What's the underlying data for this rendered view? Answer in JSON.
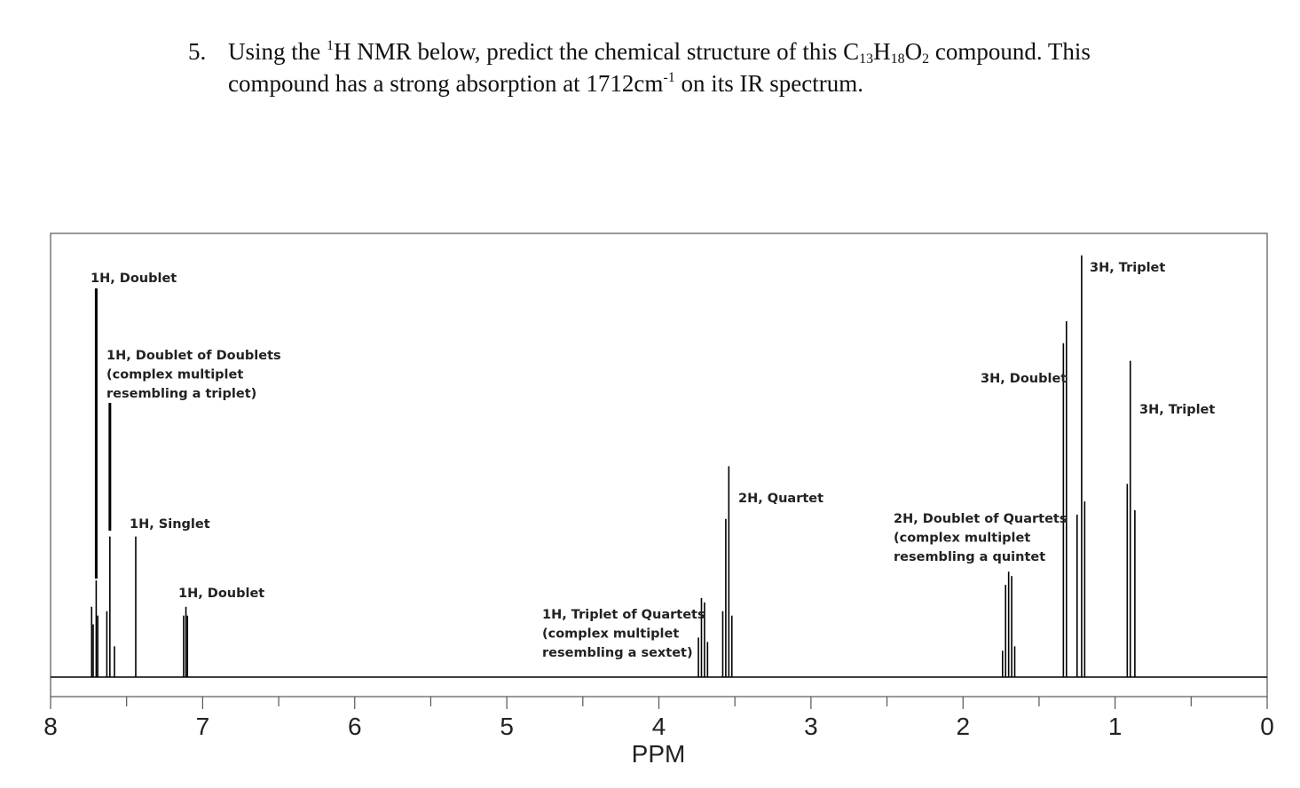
{
  "question": {
    "number": "5.",
    "line1_part1": "Using the ",
    "line1_sup": "1",
    "line1_part2": "H NMR below, predict the chemical structure of this C",
    "line1_sub1": "13",
    "line1_part3": "H",
    "line1_sub2": "18",
    "line1_part4": "O",
    "line1_sub3": "2",
    "line1_part5": " compound.  This",
    "line2_part1": "compound has a strong absorption at 1712cm",
    "line2_sup": "-1",
    "line2_part2": " on its IR spectrum."
  },
  "chart_data": {
    "type": "line",
    "title": "",
    "xlabel": "PPM",
    "ylabel": "",
    "xlim": [
      8,
      0
    ],
    "x_reversed": true,
    "xticks": [
      8,
      7,
      6,
      5,
      4,
      3,
      2,
      1,
      0
    ],
    "grid": false,
    "colors": {
      "spectrum": "#000000",
      "frame": "#555555",
      "label_line": "#000000"
    },
    "series": [
      {
        "values": [
          {
            "ppm": 7.73,
            "height": 0.16
          },
          {
            "ppm": 7.72,
            "height": 0.12
          },
          {
            "ppm": 7.7,
            "height": 0.22
          },
          {
            "ppm": 7.69,
            "height": 0.14
          },
          {
            "ppm": 7.63,
            "height": 0.15
          },
          {
            "ppm": 7.61,
            "height": 0.32
          },
          {
            "ppm": 7.58,
            "height": 0.07
          },
          {
            "ppm": 7.44,
            "height": 0.32
          },
          {
            "ppm": 7.125,
            "height": 0.14
          },
          {
            "ppm": 7.11,
            "height": 0.16
          },
          {
            "ppm": 7.1,
            "height": 0.14
          },
          {
            "ppm": 3.74,
            "height": 0.09
          },
          {
            "ppm": 3.72,
            "height": 0.18
          },
          {
            "ppm": 3.7,
            "height": 0.17
          },
          {
            "ppm": 3.68,
            "height": 0.08
          },
          {
            "ppm": 3.58,
            "height": 0.15
          },
          {
            "ppm": 3.56,
            "height": 0.36
          },
          {
            "ppm": 3.54,
            "height": 0.48
          },
          {
            "ppm": 3.52,
            "height": 0.14
          },
          {
            "ppm": 1.74,
            "height": 0.06
          },
          {
            "ppm": 1.72,
            "height": 0.21
          },
          {
            "ppm": 1.7,
            "height": 0.24
          },
          {
            "ppm": 1.68,
            "height": 0.23
          },
          {
            "ppm": 1.66,
            "height": 0.07
          },
          {
            "ppm": 1.34,
            "height": 0.76
          },
          {
            "ppm": 1.32,
            "height": 0.81
          },
          {
            "ppm": 1.25,
            "height": 0.37
          },
          {
            "ppm": 1.22,
            "height": 0.96
          },
          {
            "ppm": 1.2,
            "height": 0.4
          },
          {
            "ppm": 0.92,
            "height": 0.44
          },
          {
            "ppm": 0.9,
            "height": 0.72
          },
          {
            "ppm": 0.87,
            "height": 0.38
          }
        ]
      }
    ],
    "annotations": [
      {
        "ppm": 7.7,
        "lines": [
          "1H, Doublet"
        ],
        "leader": true
      },
      {
        "ppm": 7.61,
        "lines": [
          "1H, Doublet of Doublets",
          "(complex multiplet",
          "resembling a triplet)"
        ],
        "leader": true
      },
      {
        "ppm": 7.44,
        "lines": [
          "1H, Singlet"
        ],
        "leader": false
      },
      {
        "ppm": 7.11,
        "lines": [
          "1H, Doublet"
        ],
        "leader": false
      },
      {
        "ppm": 3.71,
        "lines": [
          "1H, Triplet of Quartets",
          "(complex multiplet",
          "resembling a sextet)"
        ],
        "leader": false
      },
      {
        "ppm": 3.55,
        "lines": [
          "2H, Quartet"
        ],
        "leader": false
      },
      {
        "ppm": 1.7,
        "lines": [
          "2H, Doublet of Quartets",
          "(complex multiplet",
          "resembling a quintet"
        ],
        "leader": false
      },
      {
        "ppm": 1.33,
        "lines": [
          "3H, Doublet"
        ],
        "leader": false
      },
      {
        "ppm": 1.22,
        "lines": [
          "3H, Triplet"
        ],
        "leader": false
      },
      {
        "ppm": 0.9,
        "lines": [
          "3H, Triplet"
        ],
        "leader": false
      }
    ]
  }
}
